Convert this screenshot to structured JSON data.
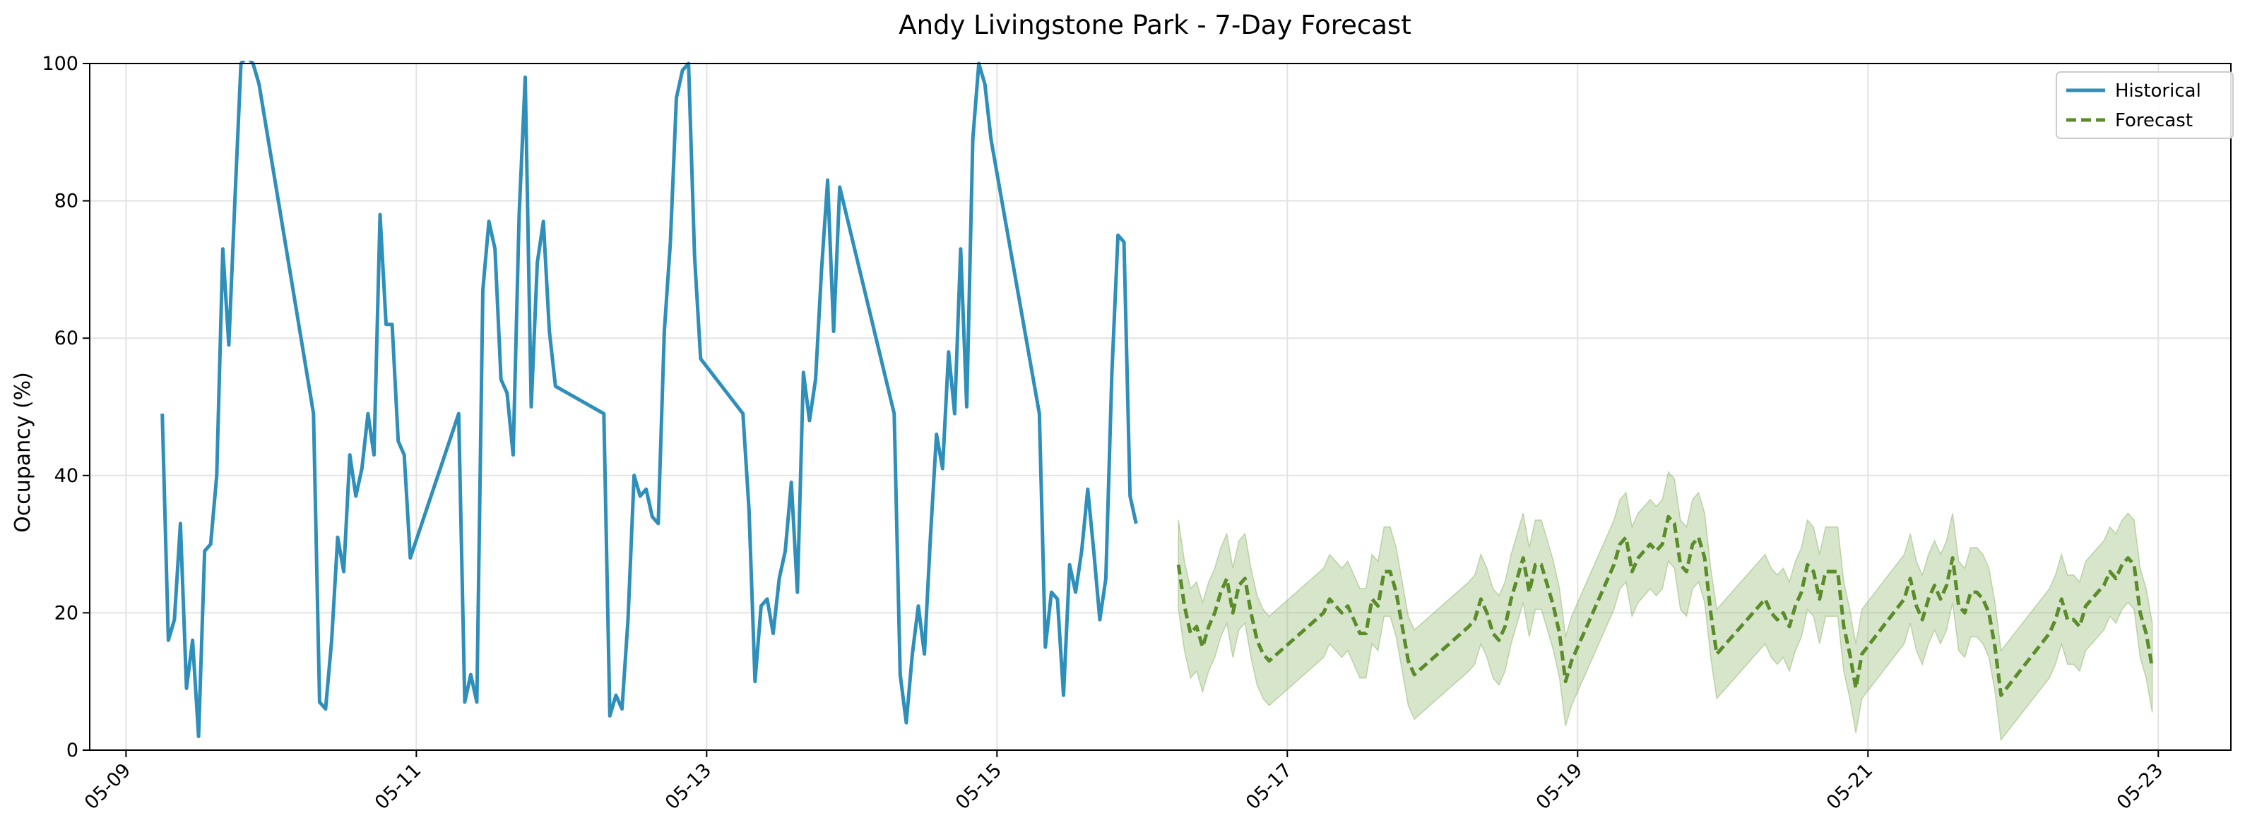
{
  "chart_data": {
    "type": "line",
    "title": "Andy Livingstone Park - 7-Day Forecast",
    "xlabel": "",
    "ylabel": "Occupancy (%)",
    "xlim": [
      "2025-05-08T18:00",
      "2025-05-23T12:00"
    ],
    "ylim": [
      0,
      100
    ],
    "grid": true,
    "legend_position": "top-right",
    "x_ticks": [
      "05-09",
      "05-11",
      "05-13",
      "05-15",
      "05-17",
      "05-19",
      "05-21",
      "05-23"
    ],
    "y_ticks": [
      0,
      20,
      40,
      60,
      80,
      100
    ],
    "colors": {
      "historical": "#2e8fba",
      "forecast": "#5a8c2a",
      "band": "#8cb56a"
    },
    "series": [
      {
        "name": "Historical",
        "style": "solid",
        "points": [
          [
            "2025-05-09T06:00",
            49
          ],
          [
            "2025-05-09T07:00",
            16
          ],
          [
            "2025-05-09T08:00",
            19
          ],
          [
            "2025-05-09T09:00",
            33
          ],
          [
            "2025-05-09T10:00",
            9
          ],
          [
            "2025-05-09T11:00",
            16
          ],
          [
            "2025-05-09T12:00",
            2
          ],
          [
            "2025-05-09T13:00",
            29
          ],
          [
            "2025-05-09T14:00",
            30
          ],
          [
            "2025-05-09T15:00",
            40
          ],
          [
            "2025-05-09T16:00",
            73
          ],
          [
            "2025-05-09T17:00",
            59
          ],
          [
            "2025-05-09T18:00",
            80
          ],
          [
            "2025-05-09T19:00",
            100
          ],
          [
            "2025-05-09T20:00",
            101
          ],
          [
            "2025-05-09T21:00",
            100
          ],
          [
            "2025-05-09T22:00",
            97
          ],
          [
            "2025-05-10T07:00",
            49
          ],
          [
            "2025-05-10T08:00",
            7
          ],
          [
            "2025-05-10T09:00",
            6
          ],
          [
            "2025-05-10T10:00",
            16
          ],
          [
            "2025-05-10T11:00",
            31
          ],
          [
            "2025-05-10T12:00",
            26
          ],
          [
            "2025-05-10T13:00",
            43
          ],
          [
            "2025-05-10T14:00",
            37
          ],
          [
            "2025-05-10T15:00",
            41
          ],
          [
            "2025-05-10T16:00",
            49
          ],
          [
            "2025-05-10T17:00",
            43
          ],
          [
            "2025-05-10T18:00",
            78
          ],
          [
            "2025-05-10T19:00",
            62
          ],
          [
            "2025-05-10T20:00",
            62
          ],
          [
            "2025-05-10T21:00",
            45
          ],
          [
            "2025-05-10T22:00",
            43
          ],
          [
            "2025-05-10T23:00",
            28
          ],
          [
            "2025-05-11T07:00",
            49
          ],
          [
            "2025-05-11T08:00",
            7
          ],
          [
            "2025-05-11T09:00",
            11
          ],
          [
            "2025-05-11T10:00",
            7
          ],
          [
            "2025-05-11T11:00",
            67
          ],
          [
            "2025-05-11T12:00",
            77
          ],
          [
            "2025-05-11T13:00",
            73
          ],
          [
            "2025-05-11T14:00",
            54
          ],
          [
            "2025-05-11T15:00",
            52
          ],
          [
            "2025-05-11T16:00",
            43
          ],
          [
            "2025-05-11T17:00",
            78
          ],
          [
            "2025-05-11T18:00",
            98
          ],
          [
            "2025-05-11T19:00",
            50
          ],
          [
            "2025-05-11T20:00",
            71
          ],
          [
            "2025-05-11T21:00",
            77
          ],
          [
            "2025-05-11T22:00",
            61
          ],
          [
            "2025-05-11T23:00",
            53
          ],
          [
            "2025-05-12T07:00",
            49
          ],
          [
            "2025-05-12T08:00",
            5
          ],
          [
            "2025-05-12T09:00",
            8
          ],
          [
            "2025-05-12T10:00",
            6
          ],
          [
            "2025-05-12T11:00",
            19
          ],
          [
            "2025-05-12T12:00",
            40
          ],
          [
            "2025-05-12T13:00",
            37
          ],
          [
            "2025-05-12T14:00",
            38
          ],
          [
            "2025-05-12T15:00",
            34
          ],
          [
            "2025-05-12T16:00",
            33
          ],
          [
            "2025-05-12T17:00",
            61
          ],
          [
            "2025-05-12T18:00",
            74
          ],
          [
            "2025-05-12T19:00",
            95
          ],
          [
            "2025-05-12T20:00",
            99
          ],
          [
            "2025-05-12T21:00",
            100
          ],
          [
            "2025-05-12T22:00",
            72
          ],
          [
            "2025-05-12T23:00",
            57
          ],
          [
            "2025-05-13T06:00",
            49
          ],
          [
            "2025-05-13T07:00",
            35
          ],
          [
            "2025-05-13T08:00",
            10
          ],
          [
            "2025-05-13T09:00",
            21
          ],
          [
            "2025-05-13T10:00",
            22
          ],
          [
            "2025-05-13T11:00",
            17
          ],
          [
            "2025-05-13T12:00",
            25
          ],
          [
            "2025-05-13T13:00",
            29
          ],
          [
            "2025-05-13T14:00",
            39
          ],
          [
            "2025-05-13T15:00",
            23
          ],
          [
            "2025-05-13T16:00",
            55
          ],
          [
            "2025-05-13T17:00",
            48
          ],
          [
            "2025-05-13T18:00",
            54
          ],
          [
            "2025-05-13T19:00",
            70
          ],
          [
            "2025-05-13T20:00",
            83
          ],
          [
            "2025-05-13T21:00",
            61
          ],
          [
            "2025-05-13T22:00",
            82
          ],
          [
            "2025-05-14T07:00",
            49
          ],
          [
            "2025-05-14T08:00",
            11
          ],
          [
            "2025-05-14T09:00",
            4
          ],
          [
            "2025-05-14T10:00",
            14
          ],
          [
            "2025-05-14T11:00",
            21
          ],
          [
            "2025-05-14T12:00",
            14
          ],
          [
            "2025-05-14T13:00",
            31
          ],
          [
            "2025-05-14T14:00",
            46
          ],
          [
            "2025-05-14T15:00",
            41
          ],
          [
            "2025-05-14T16:00",
            58
          ],
          [
            "2025-05-14T17:00",
            49
          ],
          [
            "2025-05-14T18:00",
            73
          ],
          [
            "2025-05-14T19:00",
            50
          ],
          [
            "2025-05-14T20:00",
            89
          ],
          [
            "2025-05-14T21:00",
            100
          ],
          [
            "2025-05-14T22:00",
            97
          ],
          [
            "2025-05-14T23:00",
            89
          ],
          [
            "2025-05-15T07:00",
            49
          ],
          [
            "2025-05-15T08:00",
            15
          ],
          [
            "2025-05-15T09:00",
            23
          ],
          [
            "2025-05-15T10:00",
            22
          ],
          [
            "2025-05-15T11:00",
            8
          ],
          [
            "2025-05-15T12:00",
            27
          ],
          [
            "2025-05-15T13:00",
            23
          ],
          [
            "2025-05-15T14:00",
            29
          ],
          [
            "2025-05-15T15:00",
            38
          ],
          [
            "2025-05-15T16:00",
            29
          ],
          [
            "2025-05-15T17:00",
            19
          ],
          [
            "2025-05-15T18:00",
            25
          ],
          [
            "2025-05-15T19:00",
            55
          ],
          [
            "2025-05-15T20:00",
            75
          ],
          [
            "2025-05-15T21:00",
            74
          ],
          [
            "2025-05-15T22:00",
            37
          ],
          [
            "2025-05-15T23:00",
            33
          ]
        ]
      },
      {
        "name": "Forecast",
        "style": "dashed",
        "points": [
          [
            "2025-05-16T06:00",
            27
          ],
          [
            "2025-05-16T07:00",
            21
          ],
          [
            "2025-05-16T08:00",
            17
          ],
          [
            "2025-05-16T09:00",
            18
          ],
          [
            "2025-05-16T10:00",
            15
          ],
          [
            "2025-05-16T11:00",
            18
          ],
          [
            "2025-05-16T12:00",
            20
          ],
          [
            "2025-05-16T13:00",
            23
          ],
          [
            "2025-05-16T14:00",
            25
          ],
          [
            "2025-05-16T15:00",
            20
          ],
          [
            "2025-05-16T16:00",
            24
          ],
          [
            "2025-05-16T17:00",
            25
          ],
          [
            "2025-05-16T18:00",
            20
          ],
          [
            "2025-05-16T19:00",
            16
          ],
          [
            "2025-05-16T20:00",
            14
          ],
          [
            "2025-05-16T21:00",
            13
          ],
          [
            "2025-05-17T06:00",
            20
          ],
          [
            "2025-05-17T07:00",
            22
          ],
          [
            "2025-05-17T08:00",
            21
          ],
          [
            "2025-05-17T09:00",
            20
          ],
          [
            "2025-05-17T10:00",
            21
          ],
          [
            "2025-05-17T11:00",
            19
          ],
          [
            "2025-05-17T12:00",
            17
          ],
          [
            "2025-05-17T13:00",
            17
          ],
          [
            "2025-05-17T14:00",
            22
          ],
          [
            "2025-05-17T15:00",
            21
          ],
          [
            "2025-05-17T16:00",
            26
          ],
          [
            "2025-05-17T17:00",
            26
          ],
          [
            "2025-05-17T18:00",
            23
          ],
          [
            "2025-05-17T19:00",
            18
          ],
          [
            "2025-05-17T20:00",
            13
          ],
          [
            "2025-05-17T21:00",
            11
          ],
          [
            "2025-05-18T06:00",
            18
          ],
          [
            "2025-05-18T07:00",
            19
          ],
          [
            "2025-05-18T08:00",
            22
          ],
          [
            "2025-05-18T09:00",
            20
          ],
          [
            "2025-05-18T10:00",
            17
          ],
          [
            "2025-05-18T11:00",
            16
          ],
          [
            "2025-05-18T12:00",
            18
          ],
          [
            "2025-05-18T13:00",
            22
          ],
          [
            "2025-05-18T14:00",
            25
          ],
          [
            "2025-05-18T15:00",
            28
          ],
          [
            "2025-05-18T16:00",
            23
          ],
          [
            "2025-05-18T17:00",
            27
          ],
          [
            "2025-05-18T18:00",
            27
          ],
          [
            "2025-05-18T19:00",
            24
          ],
          [
            "2025-05-18T20:00",
            21
          ],
          [
            "2025-05-18T21:00",
            17
          ],
          [
            "2025-05-18T22:00",
            10
          ],
          [
            "2025-05-18T23:00",
            13
          ],
          [
            "2025-05-19T06:00",
            27
          ],
          [
            "2025-05-19T07:00",
            30
          ],
          [
            "2025-05-19T08:00",
            31
          ],
          [
            "2025-05-19T09:00",
            26
          ],
          [
            "2025-05-19T10:00",
            28
          ],
          [
            "2025-05-19T11:00",
            29
          ],
          [
            "2025-05-19T12:00",
            30
          ],
          [
            "2025-05-19T13:00",
            29
          ],
          [
            "2025-05-19T14:00",
            30
          ],
          [
            "2025-05-19T15:00",
            34
          ],
          [
            "2025-05-19T16:00",
            33
          ],
          [
            "2025-05-19T17:00",
            27
          ],
          [
            "2025-05-19T18:00",
            26
          ],
          [
            "2025-05-19T19:00",
            30
          ],
          [
            "2025-05-19T20:00",
            31
          ],
          [
            "2025-05-19T21:00",
            28
          ],
          [
            "2025-05-19T22:00",
            20
          ],
          [
            "2025-05-19T23:00",
            14
          ],
          [
            "2025-05-20T06:00",
            21
          ],
          [
            "2025-05-20T07:00",
            22
          ],
          [
            "2025-05-20T08:00",
            20
          ],
          [
            "2025-05-20T09:00",
            19
          ],
          [
            "2025-05-20T10:00",
            20
          ],
          [
            "2025-05-20T11:00",
            18
          ],
          [
            "2025-05-20T12:00",
            21
          ],
          [
            "2025-05-20T13:00",
            23
          ],
          [
            "2025-05-20T14:00",
            27
          ],
          [
            "2025-05-20T15:00",
            26
          ],
          [
            "2025-05-20T16:00",
            22
          ],
          [
            "2025-05-20T17:00",
            26
          ],
          [
            "2025-05-20T18:00",
            26
          ],
          [
            "2025-05-20T19:00",
            26
          ],
          [
            "2025-05-20T20:00",
            18
          ],
          [
            "2025-05-20T21:00",
            14
          ],
          [
            "2025-05-20T22:00",
            9
          ],
          [
            "2025-05-20T23:00",
            14
          ],
          [
            "2025-05-21T06:00",
            22
          ],
          [
            "2025-05-21T07:00",
            25
          ],
          [
            "2025-05-21T08:00",
            21
          ],
          [
            "2025-05-21T09:00",
            19
          ],
          [
            "2025-05-21T10:00",
            22
          ],
          [
            "2025-05-21T11:00",
            24
          ],
          [
            "2025-05-21T12:00",
            22
          ],
          [
            "2025-05-21T13:00",
            24
          ],
          [
            "2025-05-21T14:00",
            28
          ],
          [
            "2025-05-21T15:00",
            21
          ],
          [
            "2025-05-21T16:00",
            20
          ],
          [
            "2025-05-21T17:00",
            23
          ],
          [
            "2025-05-21T18:00",
            23
          ],
          [
            "2025-05-21T19:00",
            22
          ],
          [
            "2025-05-21T20:00",
            20
          ],
          [
            "2025-05-21T21:00",
            15
          ],
          [
            "2025-05-21T22:00",
            8
          ],
          [
            "2025-05-22T06:00",
            17
          ],
          [
            "2025-05-22T07:00",
            19
          ],
          [
            "2025-05-22T08:00",
            22
          ],
          [
            "2025-05-22T09:00",
            19
          ],
          [
            "2025-05-22T10:00",
            19
          ],
          [
            "2025-05-22T11:00",
            18
          ],
          [
            "2025-05-22T12:00",
            21
          ],
          [
            "2025-05-22T13:00",
            22
          ],
          [
            "2025-05-22T14:00",
            23
          ],
          [
            "2025-05-22T15:00",
            24
          ],
          [
            "2025-05-22T16:00",
            26
          ],
          [
            "2025-05-22T17:00",
            25
          ],
          [
            "2025-05-22T18:00",
            27
          ],
          [
            "2025-05-22T19:00",
            28
          ],
          [
            "2025-05-22T20:00",
            27
          ],
          [
            "2025-05-22T21:00",
            20
          ],
          [
            "2025-05-22T22:00",
            17
          ],
          [
            "2025-05-22T23:00",
            12
          ]
        ]
      }
    ],
    "forecast_band_halfwidth": 6.5
  }
}
